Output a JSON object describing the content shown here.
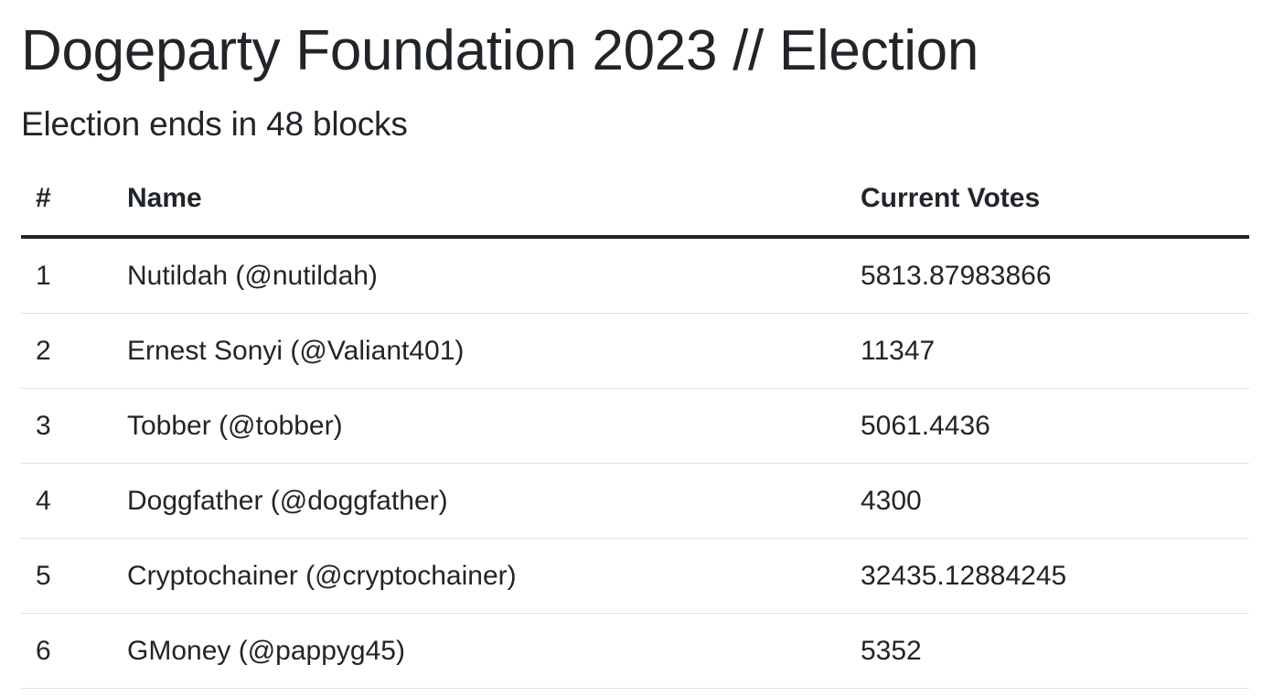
{
  "page": {
    "title": "Dogeparty Foundation 2023 // Election",
    "subtitle": "Election ends in 48 blocks"
  },
  "table": {
    "headers": {
      "num": "#",
      "name": "Name",
      "votes": "Current Votes"
    },
    "rows": [
      {
        "num": "1",
        "name": "Nutildah (@nutildah)",
        "votes": "5813.87983866"
      },
      {
        "num": "2",
        "name": "Ernest Sonyi (@Valiant401)",
        "votes": "11347"
      },
      {
        "num": "3",
        "name": "Tobber (@tobber)",
        "votes": "5061.4436"
      },
      {
        "num": "4",
        "name": "Doggfather (@doggfather)",
        "votes": "4300"
      },
      {
        "num": "5",
        "name": "Cryptochainer (@cryptochainer)",
        "votes": "32435.12884245"
      },
      {
        "num": "6",
        "name": "GMoney (@pappyg45)",
        "votes": "5352"
      }
    ]
  }
}
